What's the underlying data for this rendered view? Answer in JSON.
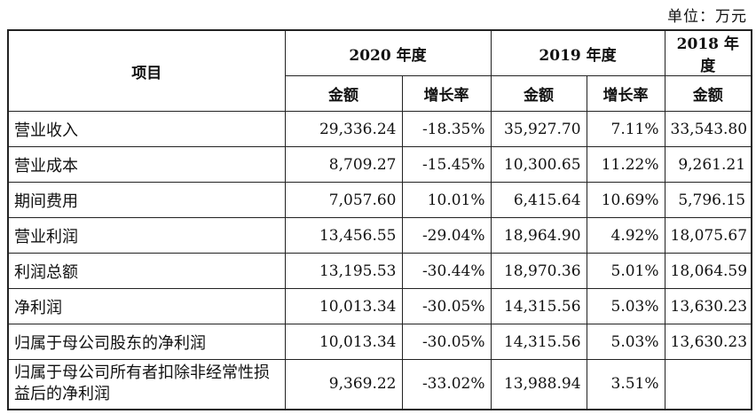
{
  "unit_label": "单位：万元",
  "header": {
    "item": "项目",
    "years": [
      "2020 年度",
      "2019 年度",
      "2018 年度"
    ],
    "amount": "金额",
    "growth": "增长率"
  },
  "rows": [
    {
      "label": "营业收入",
      "v2020": "29,336.24",
      "g2020": "-18.35%",
      "v2019": "35,927.70",
      "g2019": "7.11%",
      "v2018": "33,543.80"
    },
    {
      "label": "营业成本",
      "v2020": "8,709.27",
      "g2020": "-15.45%",
      "v2019": "10,300.65",
      "g2019": "11.22%",
      "v2018": "9,261.21"
    },
    {
      "label": "期间费用",
      "v2020": "7,057.60",
      "g2020": "10.01%",
      "v2019": "6,415.64",
      "g2019": "10.69%",
      "v2018": "5,796.15"
    },
    {
      "label": "营业利润",
      "v2020": "13,456.55",
      "g2020": "-29.04%",
      "v2019": "18,964.90",
      "g2019": "4.92%",
      "v2018": "18,075.67"
    },
    {
      "label": "利润总额",
      "v2020": "13,195.53",
      "g2020": "-30.44%",
      "v2019": "18,970.36",
      "g2019": "5.01%",
      "v2018": "18,064.59"
    },
    {
      "label": "净利润",
      "v2020": "10,013.34",
      "g2020": "-30.05%",
      "v2019": "14,315.56",
      "g2019": "5.03%",
      "v2018": "13,630.23"
    },
    {
      "label": "归属于母公司股东的净利润",
      "v2020": "10,013.34",
      "g2020": "-30.05%",
      "v2019": "14,315.56",
      "g2019": "5.03%",
      "v2018": "13,630.23"
    },
    {
      "label": "归属于母公司所有者扣除非经常性损益后的净利润",
      "v2020": "9,369.22",
      "g2020": "-33.02%",
      "v2019": "13,988.94",
      "g2019": "3.51%",
      "v2018": ""
    }
  ]
}
